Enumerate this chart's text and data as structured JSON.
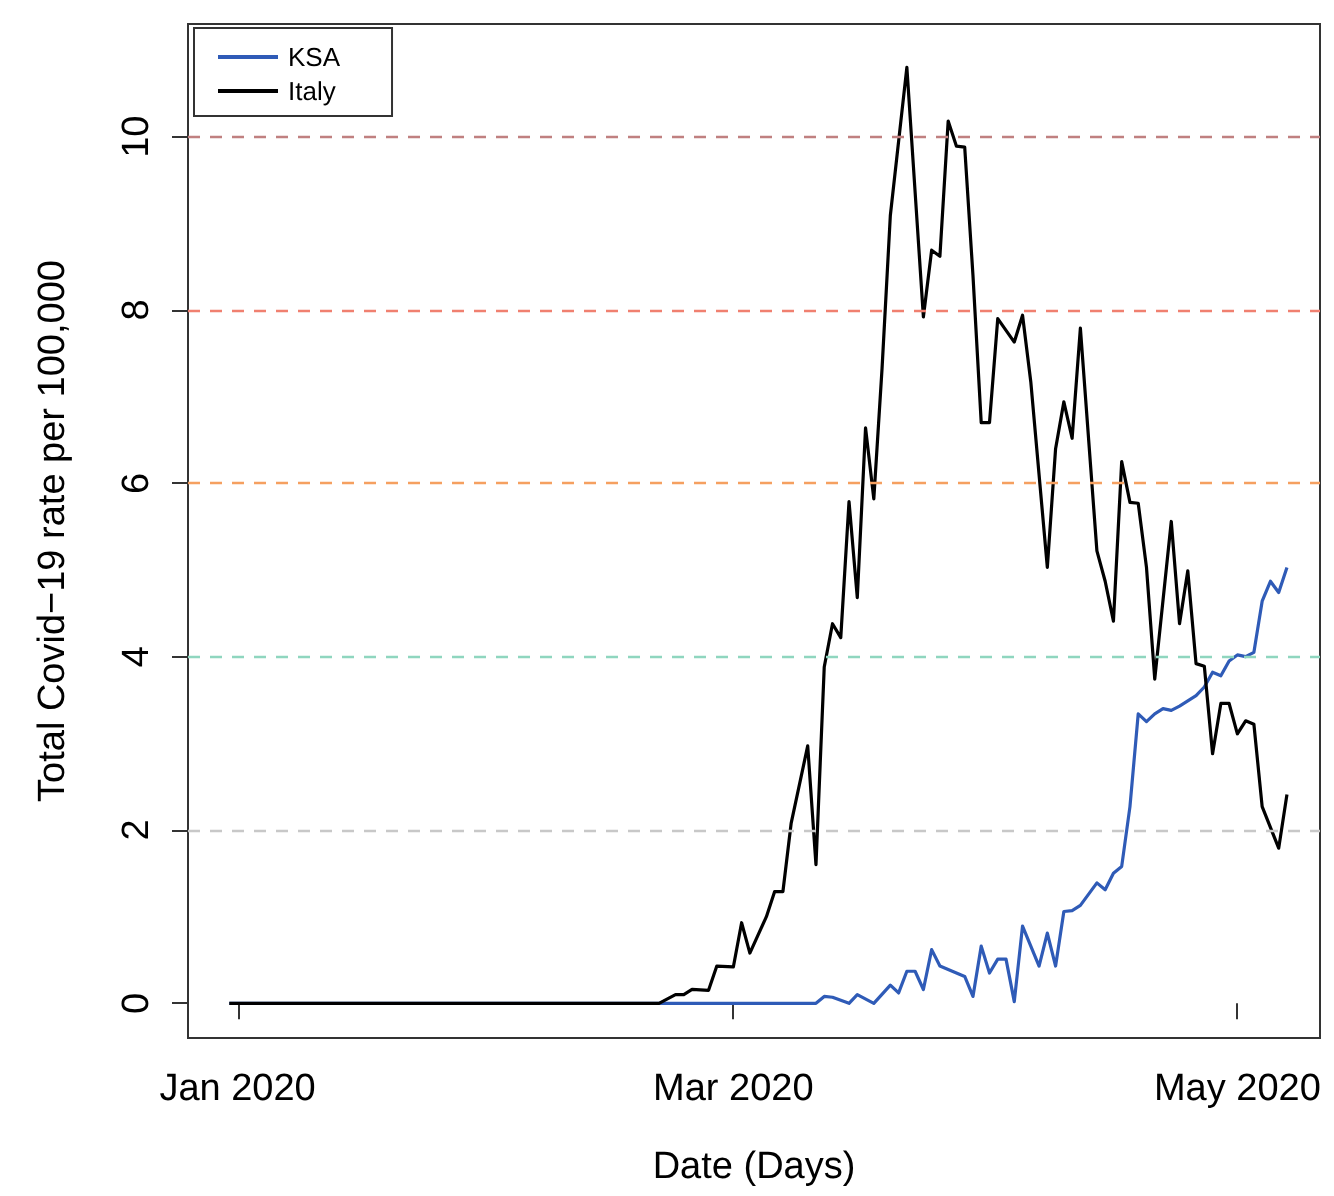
{
  "chart_data": {
    "type": "line",
    "xlabel": "Date (Days)",
    "ylabel": "Total Covid−19 rate per 100,000",
    "xlim": [
      "2019-12-26",
      "2020-05-11"
    ],
    "xticks": [
      {
        "value": "2020-01-01",
        "label": "Jan 2020"
      },
      {
        "value": "2020-03-01",
        "label": "Mar 2020"
      },
      {
        "value": "2020-05-01",
        "label": "May 2020"
      }
    ],
    "ylim": [
      -0.4,
      11.3
    ],
    "yticks": [
      0,
      2,
      4,
      6,
      8,
      10
    ],
    "legend": "top left",
    "ref_lines": [
      {
        "axis": "y",
        "value": 2,
        "color": "#c8c8c8",
        "line_style": "dashed"
      },
      {
        "axis": "y",
        "value": 4,
        "color": "#8fd6bf",
        "line_style": "dashed"
      },
      {
        "axis": "y",
        "value": 6,
        "color": "#f5a060",
        "line_style": "dashed"
      },
      {
        "axis": "y",
        "value": 8,
        "color": "#f08070",
        "line_style": "dashed"
      },
      {
        "axis": "y",
        "value": 10,
        "color": "#c08080",
        "line_style": "dashed"
      }
    ],
    "series": [
      {
        "name": "KSA",
        "color": "#2f5bb7",
        "x": [
          "2019-12-31",
          "2020-03-05",
          "2020-03-11",
          "2020-03-12",
          "2020-03-13",
          "2020-03-15",
          "2020-03-16",
          "2020-03-18",
          "2020-03-20",
          "2020-03-21",
          "2020-03-22",
          "2020-03-23",
          "2020-03-24",
          "2020-03-25",
          "2020-03-26",
          "2020-03-29",
          "2020-03-30",
          "2020-03-31",
          "2020-04-01",
          "2020-04-02",
          "2020-04-03",
          "2020-04-04",
          "2020-04-05",
          "2020-04-07",
          "2020-04-08",
          "2020-04-09",
          "2020-04-10",
          "2020-04-11",
          "2020-04-12",
          "2020-04-14",
          "2020-04-15",
          "2020-04-16",
          "2020-04-17",
          "2020-04-18",
          "2020-04-19",
          "2020-04-20",
          "2020-04-21",
          "2020-04-22",
          "2020-04-23",
          "2020-04-24",
          "2020-04-25",
          "2020-04-26",
          "2020-04-27",
          "2020-04-28",
          "2020-04-29",
          "2020-04-30",
          "2020-05-01",
          "2020-05-02",
          "2020-05-03",
          "2020-05-04",
          "2020-05-05",
          "2020-05-06",
          "2020-05-07"
        ],
        "values": [
          0,
          0,
          0,
          0.08,
          0.07,
          0,
          0.1,
          0,
          0.21,
          0.12,
          0.37,
          0.37,
          0.16,
          0.62,
          0.43,
          0.31,
          0.08,
          0.66,
          0.35,
          0.51,
          0.51,
          0.02,
          0.89,
          0.43,
          0.81,
          0.43,
          1.06,
          1.07,
          1.13,
          1.39,
          1.31,
          1.5,
          1.58,
          2.27,
          3.34,
          3.25,
          3.34,
          3.4,
          3.38,
          3.43,
          3.49,
          3.55,
          3.65,
          3.82,
          3.78,
          3.95,
          4.02,
          4.0,
          4.05,
          4.64,
          4.87,
          4.74,
          5.03
        ]
      },
      {
        "name": "Italy",
        "color": "#000000",
        "x": [
          "2019-12-31",
          "2020-02-21",
          "2020-02-23",
          "2020-02-24",
          "2020-02-25",
          "2020-02-27",
          "2020-02-28",
          "2020-03-01",
          "2020-03-02",
          "2020-03-03",
          "2020-03-05",
          "2020-03-06",
          "2020-03-07",
          "2020-03-08",
          "2020-03-10",
          "2020-03-11",
          "2020-03-12",
          "2020-03-13",
          "2020-03-14",
          "2020-03-15",
          "2020-03-16",
          "2020-03-17",
          "2020-03-18",
          "2020-03-19",
          "2020-03-20",
          "2020-03-22",
          "2020-03-24",
          "2020-03-25",
          "2020-03-26",
          "2020-03-27",
          "2020-03-28",
          "2020-03-29",
          "2020-03-30",
          "2020-03-31",
          "2020-04-01",
          "2020-04-02",
          "2020-04-04",
          "2020-04-05",
          "2020-04-06",
          "2020-04-08",
          "2020-04-09",
          "2020-04-10",
          "2020-04-11",
          "2020-04-12",
          "2020-04-14",
          "2020-04-15",
          "2020-04-16",
          "2020-04-17",
          "2020-04-18",
          "2020-04-19",
          "2020-04-20",
          "2020-04-21",
          "2020-04-23",
          "2020-04-24",
          "2020-04-25",
          "2020-04-26",
          "2020-04-27",
          "2020-04-28",
          "2020-04-29",
          "2020-04-30",
          "2020-05-01",
          "2020-05-02",
          "2020-05-03",
          "2020-05-04",
          "2020-05-06",
          "2020-05-07"
        ],
        "values": [
          0,
          0,
          0.1,
          0.1,
          0.16,
          0.15,
          0.43,
          0.42,
          0.93,
          0.58,
          1.0,
          1.29,
          1.29,
          2.08,
          2.97,
          1.6,
          3.88,
          4.38,
          4.22,
          5.79,
          4.68,
          6.64,
          5.82,
          7.33,
          9.09,
          10.8,
          7.92,
          8.69,
          8.62,
          10.18,
          9.89,
          9.88,
          8.4,
          6.7,
          6.7,
          7.9,
          7.63,
          7.94,
          7.17,
          5.03,
          6.4,
          6.94,
          6.52,
          7.79,
          5.22,
          4.87,
          4.41,
          6.25,
          5.78,
          5.77,
          5.03,
          3.74,
          5.56,
          4.38,
          4.99,
          3.92,
          3.89,
          2.88,
          3.46,
          3.46,
          3.11,
          3.26,
          3.22,
          2.27,
          1.79,
          2.41
        ]
      }
    ]
  }
}
